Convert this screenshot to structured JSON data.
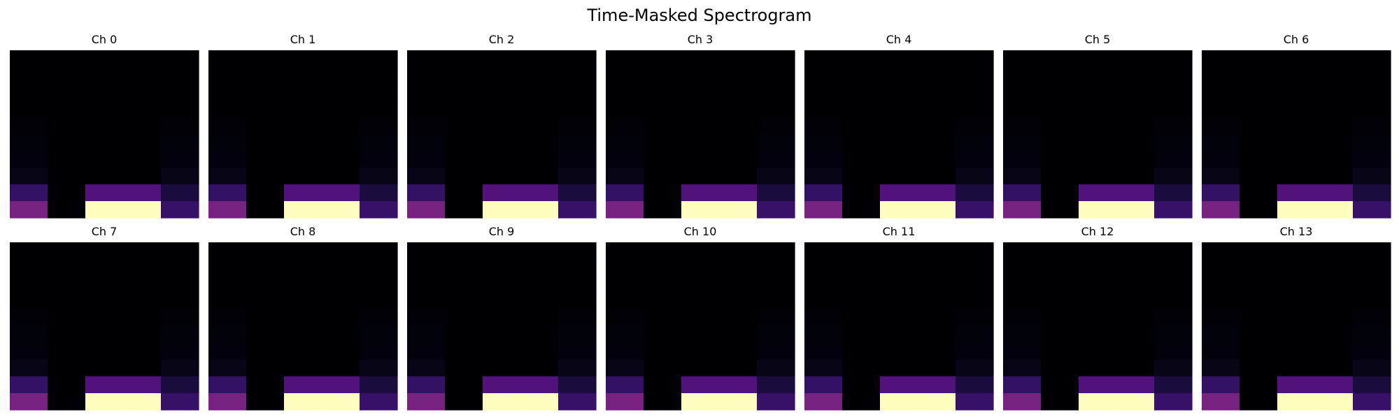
{
  "title": "Time-Masked Spectrogram",
  "colors": {
    "colormap": "magma",
    "background": "#ffffff",
    "text": "#000000"
  },
  "chart_data": {
    "type": "heatmap",
    "title": "Time-Masked Spectrogram",
    "xlabel": "",
    "ylabel": "",
    "axes_visible": false,
    "grid": false,
    "colormap": "magma",
    "grid_layout": {
      "rows": 2,
      "cols": 7
    },
    "matrix_shape": {
      "freq_bins": 10,
      "time_frames": 5
    },
    "value_range": [
      0,
      1
    ],
    "panels": [
      {
        "title": "Ch 0"
      },
      {
        "title": "Ch 1"
      },
      {
        "title": "Ch 2"
      },
      {
        "title": "Ch 3"
      },
      {
        "title": "Ch 4"
      },
      {
        "title": "Ch 5"
      },
      {
        "title": "Ch 6"
      },
      {
        "title": "Ch 7"
      },
      {
        "title": "Ch 8"
      },
      {
        "title": "Ch 9"
      },
      {
        "title": "Ch 10"
      },
      {
        "title": "Ch 11"
      },
      {
        "title": "Ch 12"
      },
      {
        "title": "Ch 13"
      }
    ],
    "shared_values_top_to_bottom": [
      [
        0.0,
        0.0,
        0.0,
        0.0,
        0.0
      ],
      [
        0.0,
        0.0,
        0.0,
        0.0,
        0.0
      ],
      [
        0.0,
        0.0,
        0.0,
        0.0,
        0.0
      ],
      [
        0.0,
        0.0,
        0.0,
        0.0,
        0.0
      ],
      [
        0.01,
        0.0,
        0.0,
        0.0,
        0.01
      ],
      [
        0.02,
        0.0,
        0.0,
        0.0,
        0.02
      ],
      [
        0.03,
        0.0,
        0.0,
        0.0,
        0.03
      ],
      [
        0.06,
        0.0,
        0.0,
        0.0,
        0.06
      ],
      [
        0.22,
        0.0,
        0.3,
        0.3,
        0.14
      ],
      [
        0.42,
        0.0,
        1.0,
        1.0,
        0.23
      ]
    ]
  }
}
